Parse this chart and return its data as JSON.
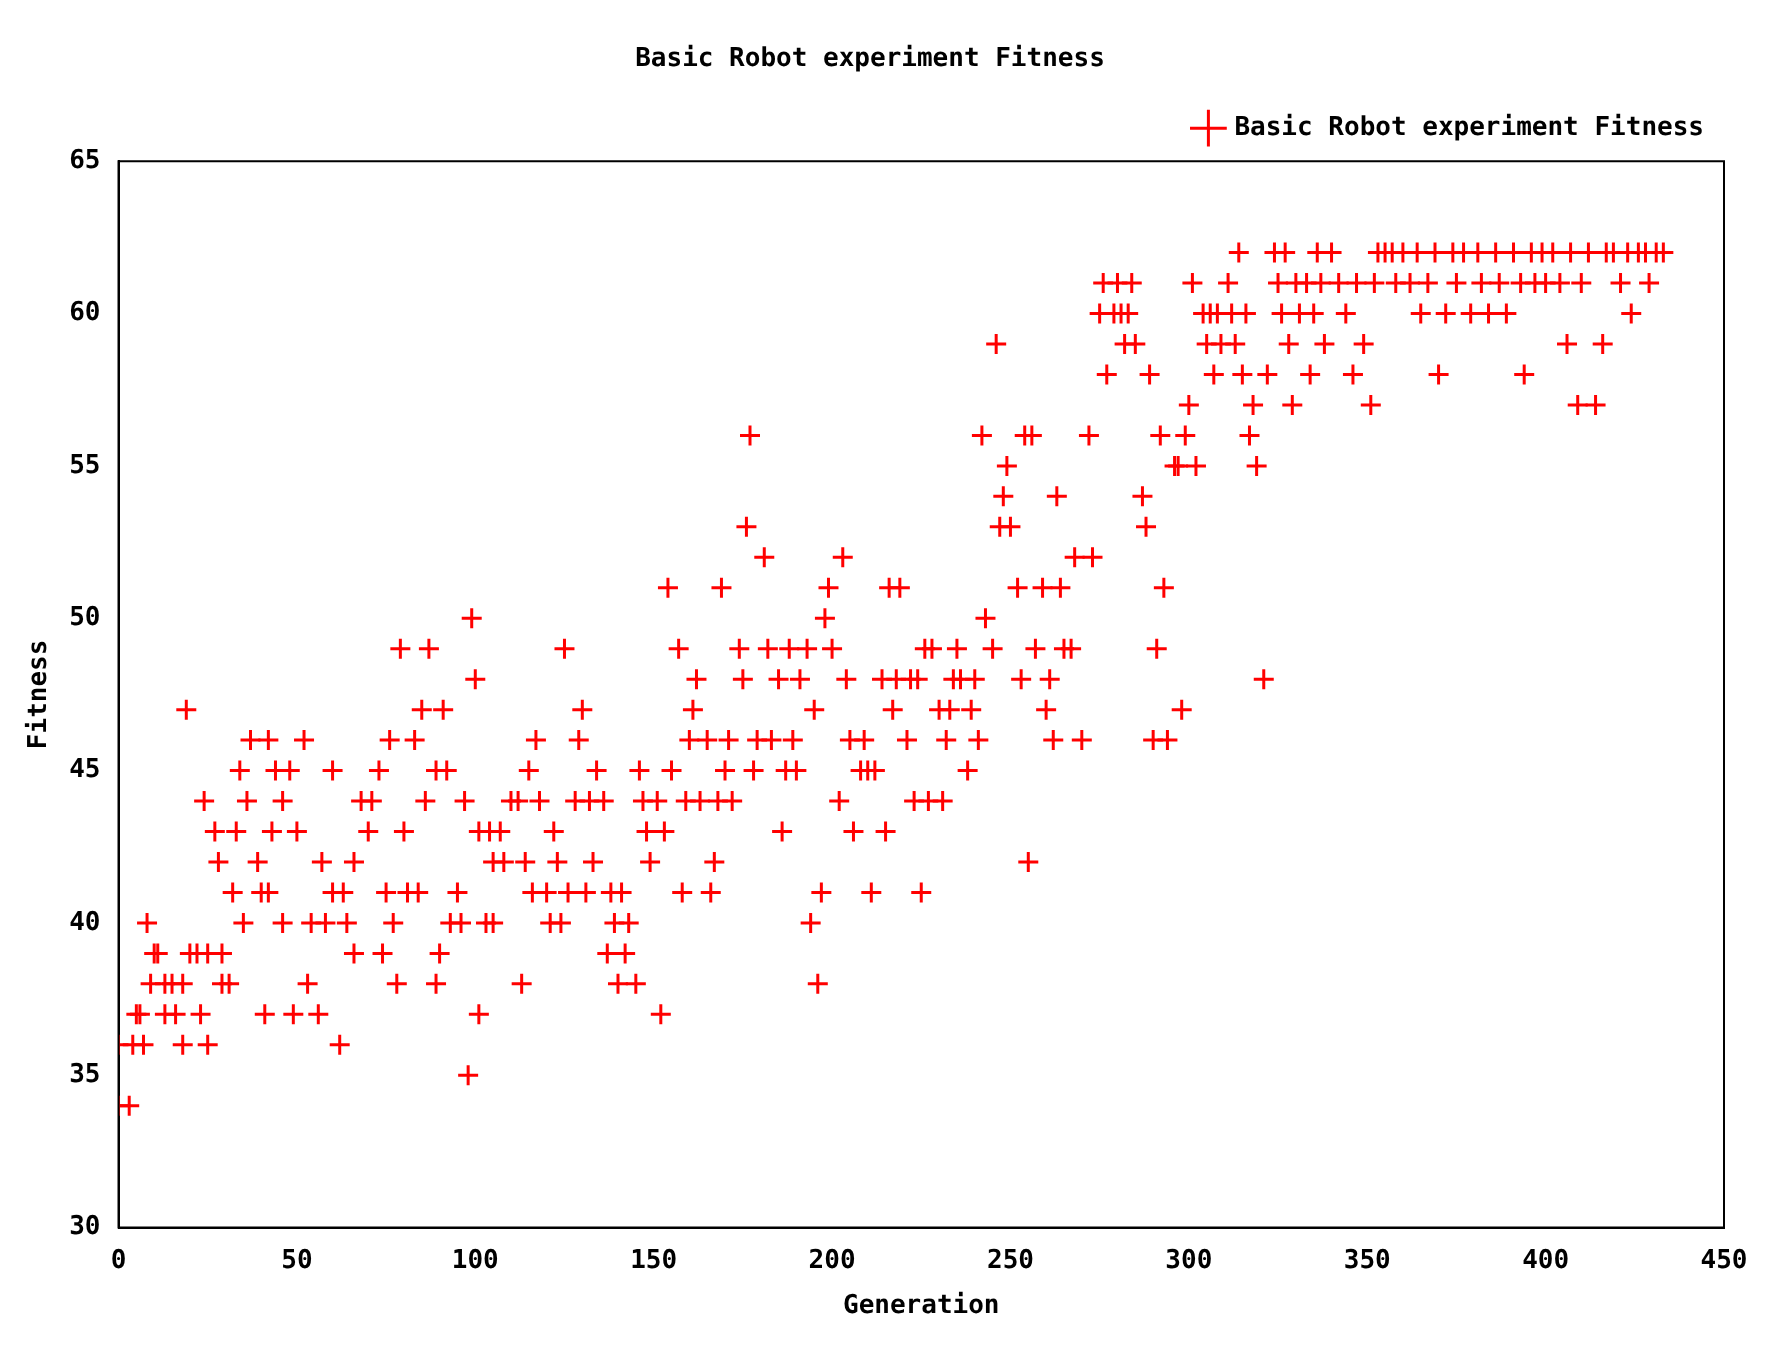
{
  "chart_data": {
    "type": "scatter",
    "title": "Basic Robot experiment Fitness",
    "xlabel": "Generation",
    "ylabel": "Fitness",
    "xlim": [
      0,
      450
    ],
    "xticks": [
      0,
      50,
      100,
      150,
      200,
      250,
      300,
      350,
      400,
      450
    ],
    "ylim": [
      30,
      65
    ],
    "yticks": [
      30,
      35,
      40,
      45,
      50,
      55,
      60,
      65
    ],
    "grid": false,
    "legend": "top right",
    "marker": "cross",
    "series": [
      {
        "name": "Basic Robot experiment Fitness",
        "color": "#ff0000",
        "x": [
          0,
          3,
          0,
          4,
          7,
          5,
          6,
          9,
          8,
          10,
          11,
          13,
          15,
          13,
          16,
          18,
          18,
          20,
          22,
          19,
          23,
          24,
          25,
          25,
          27,
          28,
          29,
          29,
          31,
          32,
          33,
          34,
          35,
          36,
          37,
          39,
          40,
          41,
          42,
          42,
          43,
          44,
          46,
          46,
          48,
          49,
          50,
          52,
          53,
          54,
          56,
          57,
          58,
          60,
          60,
          62,
          63,
          64,
          66,
          66,
          68,
          70,
          71,
          73,
          74,
          75,
          76,
          77,
          78,
          79,
          80,
          81,
          83,
          84,
          85,
          86,
          87,
          89,
          89,
          90,
          91,
          92,
          93,
          95,
          96,
          97,
          98,
          99,
          100,
          101,
          101,
          103,
          104,
          105,
          105,
          107,
          108,
          110,
          112,
          113,
          114,
          115,
          116,
          117,
          118,
          120,
          121,
          122,
          123,
          124,
          125,
          126,
          128,
          129,
          130,
          131,
          132,
          133,
          134,
          136,
          137,
          138,
          139,
          140,
          141,
          142,
          143,
          145,
          146,
          147,
          148,
          149,
          151,
          152,
          153,
          154,
          155,
          157,
          158,
          159,
          160,
          161,
          162,
          163,
          165,
          166,
          167,
          168,
          169,
          170,
          171,
          172,
          174,
          175,
          176,
          177,
          178,
          179,
          181,
          182,
          183,
          185,
          186,
          187,
          188,
          189,
          190,
          191,
          193,
          194,
          195,
          196,
          197,
          198,
          199,
          200,
          202,
          203,
          204,
          205,
          206,
          208,
          209,
          210,
          211,
          212,
          214,
          215,
          216,
          217,
          218,
          219,
          221,
          222,
          223,
          224,
          225,
          226,
          227,
          228,
          230,
          231,
          232,
          233,
          234,
          235,
          236,
          238,
          239,
          240,
          241,
          242,
          243,
          245,
          246,
          247,
          248,
          249,
          250,
          252,
          253,
          254,
          255,
          256,
          257,
          259,
          260,
          261,
          262,
          263,
          264,
          265,
          267,
          268,
          270,
          272,
          273,
          275,
          276,
          277,
          279,
          280,
          281,
          282,
          283,
          284,
          285,
          287,
          288,
          289,
          290,
          291,
          292,
          293,
          294,
          296,
          297,
          298,
          299,
          300,
          301,
          302,
          304,
          305,
          306,
          307,
          308,
          309,
          311,
          312,
          313,
          314,
          315,
          316,
          317,
          318,
          319,
          321,
          322,
          324,
          325,
          326,
          327,
          328,
          329,
          330,
          331,
          333,
          334,
          335,
          336,
          337,
          338,
          340,
          342,
          344,
          346,
          347,
          349,
          351,
          352,
          353,
          355,
          357,
          358,
          360,
          362,
          364,
          365,
          367,
          369,
          370,
          372,
          374,
          375,
          377,
          379,
          381,
          382,
          384,
          386,
          387,
          389,
          391,
          393,
          394,
          396,
          397,
          399,
          400,
          402,
          404,
          406,
          407,
          409,
          410,
          412,
          414,
          416,
          417,
          419,
          421,
          423,
          424,
          426,
          428,
          429,
          431,
          433
        ],
        "values": [
          34,
          34,
          36,
          36,
          36,
          37,
          37,
          38,
          40,
          39,
          39,
          38,
          38,
          37,
          37,
          38,
          36,
          39,
          39,
          47,
          37,
          44,
          36,
          39,
          43,
          42,
          39,
          38,
          38,
          41,
          43,
          45,
          40,
          44,
          46,
          42,
          41,
          37,
          46,
          41,
          43,
          45,
          40,
          44,
          45,
          37,
          43,
          46,
          38,
          40,
          37,
          42,
          40,
          45,
          41,
          36,
          41,
          40,
          42,
          39,
          44,
          43,
          44,
          45,
          39,
          41,
          46,
          40,
          38,
          49,
          43,
          41,
          46,
          41,
          47,
          44,
          49,
          45,
          38,
          39,
          47,
          45,
          40,
          41,
          40,
          44,
          35,
          50,
          48,
          43,
          37,
          40,
          43,
          42,
          40,
          43,
          42,
          44,
          44,
          38,
          42,
          45,
          41,
          46,
          44,
          41,
          40,
          43,
          42,
          40,
          49,
          41,
          44,
          46,
          47,
          41,
          44,
          42,
          45,
          44,
          39,
          41,
          40,
          38,
          41,
          39,
          40,
          38,
          45,
          44,
          43,
          42,
          44,
          37,
          43,
          51,
          45,
          49,
          41,
          44,
          46,
          47,
          48,
          44,
          46,
          41,
          42,
          44,
          51,
          45,
          46,
          44,
          49,
          48,
          53,
          56,
          45,
          46,
          52,
          49,
          46,
          48,
          43,
          45,
          49,
          46,
          45,
          48,
          49,
          40,
          47,
          38,
          41,
          50,
          51,
          49,
          44,
          52,
          48,
          46,
          43,
          45,
          46,
          45,
          41,
          45,
          48,
          43,
          51,
          47,
          48,
          51,
          46,
          48,
          44,
          48,
          41,
          49,
          44,
          49,
          47,
          44,
          46,
          47,
          48,
          49,
          48,
          45,
          47,
          48,
          46,
          56,
          50,
          49,
          59,
          53,
          54,
          55,
          53,
          51,
          48,
          56,
          42,
          56,
          49,
          51,
          47,
          48,
          46,
          54,
          51,
          49,
          49,
          52,
          46,
          56,
          52,
          60,
          61,
          58,
          60,
          61,
          60,
          59,
          60,
          61,
          59,
          54,
          53,
          58,
          46,
          49,
          56,
          51,
          46,
          55,
          55,
          47,
          56,
          57,
          61,
          55,
          60,
          59,
          60,
          58,
          60,
          59,
          61,
          60,
          59,
          62,
          58,
          60,
          56,
          57,
          55,
          48,
          58,
          62,
          61,
          60,
          62,
          59,
          57,
          61,
          60,
          61,
          58,
          60,
          62,
          61,
          59,
          62,
          61,
          60,
          58,
          61,
          59,
          57,
          61,
          62,
          62,
          62,
          61,
          62,
          61,
          62,
          60,
          61,
          62,
          58,
          60,
          62,
          61,
          62,
          60,
          62,
          61,
          60,
          62,
          61,
          60,
          62,
          61,
          58,
          62,
          61,
          62,
          61,
          62,
          61,
          59,
          62,
          57,
          61,
          62,
          57,
          59,
          62,
          62,
          61,
          62,
          60,
          62,
          62,
          61,
          62,
          62
        ]
      }
    ]
  }
}
